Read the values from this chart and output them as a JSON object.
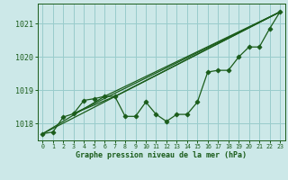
{
  "xlabel": "Graphe pression niveau de la mer (hPa)",
  "bg_color": "#cce8e8",
  "plot_bg_color": "#cce8e8",
  "grid_color": "#99cccc",
  "line_color": "#1a5c1a",
  "ylim": [
    1017.5,
    1021.6
  ],
  "xlim": [
    -0.5,
    23.5
  ],
  "yticks": [
    1018,
    1019,
    1020,
    1021
  ],
  "xticks": [
    0,
    1,
    2,
    3,
    4,
    5,
    6,
    7,
    8,
    9,
    10,
    11,
    12,
    13,
    14,
    15,
    16,
    17,
    18,
    19,
    20,
    21,
    22,
    23
  ],
  "main_data_x": [
    0,
    1,
    2,
    3,
    4,
    5,
    6,
    7,
    8,
    9,
    10,
    11,
    12,
    13,
    14,
    15,
    16,
    17,
    18,
    19,
    20,
    21,
    22,
    23
  ],
  "main_data_y": [
    1017.7,
    1017.75,
    1018.2,
    1018.3,
    1018.7,
    1018.75,
    1018.82,
    1018.82,
    1018.22,
    1018.22,
    1018.65,
    1018.28,
    1018.07,
    1018.28,
    1018.28,
    1018.65,
    1019.55,
    1019.6,
    1019.6,
    1020.0,
    1020.3,
    1020.3,
    1020.85,
    1021.35
  ],
  "trend1_x": [
    0,
    23
  ],
  "trend1_y": [
    1017.7,
    1021.35
  ],
  "trend2_x": [
    3,
    23
  ],
  "trend2_y": [
    1018.3,
    1021.35
  ],
  "trend3_x": [
    3,
    7,
    23
  ],
  "trend3_y": [
    1018.3,
    1018.82,
    1021.35
  ],
  "trend4_x": [
    0,
    6,
    23
  ],
  "trend4_y": [
    1017.7,
    1018.82,
    1021.35
  ]
}
